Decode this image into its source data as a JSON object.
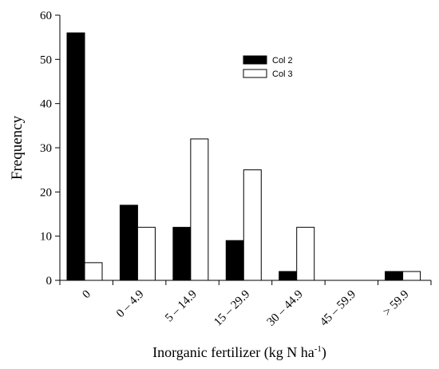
{
  "chart_data": {
    "type": "bar",
    "ylabel": "Frequency",
    "xlabel_main": "Inorganic fertilizer (kg N ha",
    "xlabel_sup": "-1",
    "xlabel_close": ")",
    "ylim": [
      0,
      60
    ],
    "yticks": [
      0,
      10,
      20,
      30,
      40,
      50,
      60
    ],
    "categories": [
      "0",
      "0 – 4.9",
      "5 – 14.9",
      "15 – 29.9",
      "30 – 44.9",
      "45 – 59.9",
      "> 59.9"
    ],
    "series": [
      {
        "name": "Col 2",
        "color": "#000000",
        "values": [
          56,
          17,
          12,
          9,
          2,
          0,
          2
        ]
      },
      {
        "name": "Col 3",
        "color": "#ffffff",
        "values": [
          4,
          12,
          32,
          25,
          12,
          0,
          2
        ]
      }
    ],
    "legend_position": "top-center",
    "grid": false
  }
}
